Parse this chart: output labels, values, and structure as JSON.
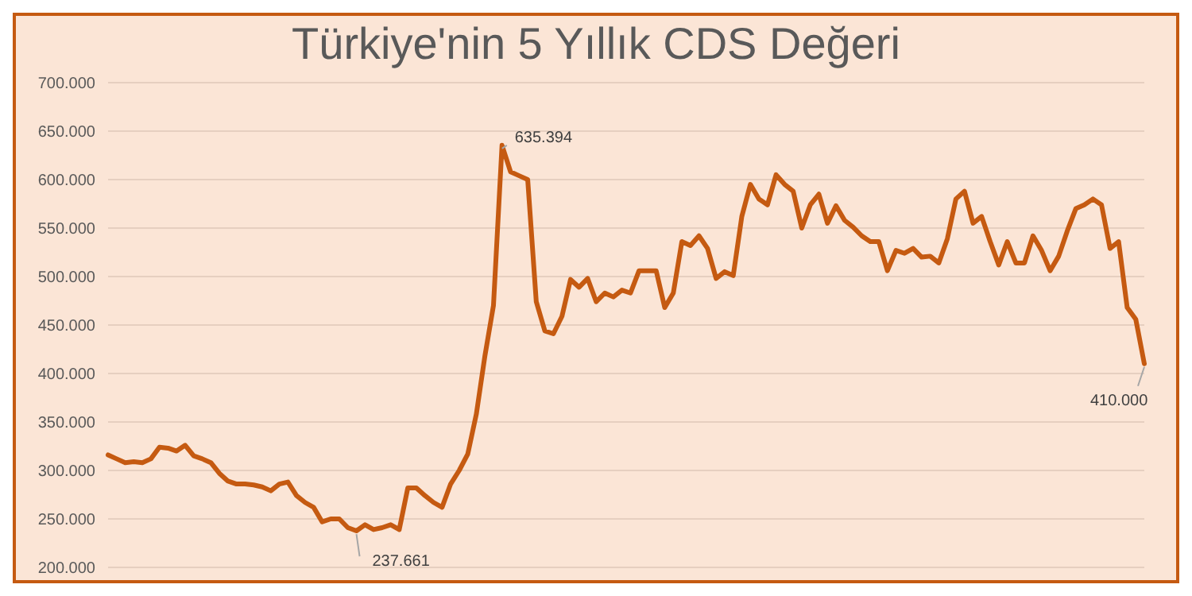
{
  "chart_data": {
    "type": "line",
    "title": "Türkiye'nin 5 Yıllık CDS Değeri",
    "categories": [
      null,
      null,
      null,
      null,
      null,
      null,
      null,
      null,
      null,
      null,
      null,
      null,
      null,
      null,
      null,
      null,
      null,
      null,
      null,
      null,
      null,
      null,
      null,
      null,
      null,
      null,
      null,
      null,
      null,
      null,
      null,
      null,
      null,
      null,
      null,
      null,
      null,
      null,
      null,
      null,
      null,
      null,
      null,
      null,
      null,
      null,
      null,
      null,
      null,
      null,
      null,
      null,
      null,
      null,
      null,
      null,
      null,
      null,
      null,
      null,
      null,
      null,
      null,
      null,
      null,
      null,
      null,
      null,
      null,
      null,
      null,
      null,
      null,
      null,
      null,
      null,
      null,
      null,
      null,
      null,
      null,
      null,
      null,
      null,
      null,
      null,
      null,
      null,
      null,
      null,
      null,
      null,
      null,
      null,
      null,
      null,
      null,
      null,
      null,
      null,
      null,
      null,
      null,
      null,
      null,
      null,
      null,
      null,
      null,
      null,
      null,
      null,
      null,
      null,
      null,
      null,
      null,
      null,
      null,
      null,
      null,
      null
    ],
    "series": [
      {
        "color": "#c55a11",
        "values": [
          316,
          312,
          308,
          309,
          308,
          312,
          324,
          323,
          320,
          326,
          315,
          312,
          308,
          297,
          289,
          286,
          286,
          285,
          283,
          279,
          286,
          288,
          274,
          267,
          262,
          247,
          250,
          250,
          241,
          237.661,
          244,
          239,
          241,
          244,
          239,
          282,
          282,
          274,
          267,
          262,
          286,
          300,
          317,
          358,
          418,
          470,
          635.394,
          608,
          604,
          600,
          474,
          444,
          441,
          459,
          497,
          489,
          498,
          474,
          483,
          479,
          486,
          483,
          506,
          506,
          506,
          468,
          483,
          536,
          532,
          542,
          529,
          498,
          505,
          501,
          562,
          595,
          580,
          574,
          605,
          595,
          588,
          550,
          574,
          585,
          555,
          573,
          558,
          551,
          542,
          536,
          536,
          506,
          527,
          524,
          529,
          520,
          521,
          514,
          539,
          580,
          588,
          555,
          562,
          536,
          512,
          536,
          514,
          514,
          542,
          527,
          506,
          521,
          547,
          570,
          574,
          580,
          574,
          529,
          536,
          468,
          456,
          410
        ],
        "value_labels": [
          null,
          null,
          null,
          null,
          null,
          null,
          null,
          null,
          null,
          null,
          null,
          null,
          null,
          null,
          null,
          null,
          null,
          null,
          null,
          null,
          null,
          null,
          null,
          null,
          null,
          null,
          null,
          null,
          null,
          "237.661",
          null,
          null,
          null,
          null,
          null,
          null,
          null,
          null,
          null,
          null,
          null,
          null,
          null,
          null,
          null,
          null,
          "635.394",
          null,
          null,
          null,
          null,
          null,
          null,
          null,
          null,
          null,
          null,
          null,
          null,
          null,
          null,
          null,
          null,
          null,
          null,
          null,
          null,
          null,
          null,
          null,
          null,
          null,
          null,
          null,
          null,
          null,
          null,
          null,
          null,
          null,
          null,
          null,
          null,
          null,
          null,
          null,
          null,
          null,
          null,
          null,
          null,
          null,
          null,
          null,
          null,
          null,
          null,
          null,
          null,
          null,
          null,
          null,
          null,
          null,
          null,
          null,
          null,
          null,
          null,
          null,
          null,
          null,
          null,
          null,
          null,
          null,
          null,
          null,
          null,
          null,
          null,
          "410.000"
        ]
      }
    ],
    "ylim": [
      200,
      700
    ],
    "yticks": [
      {
        "value": 200,
        "label": "200.000"
      },
      {
        "value": 250,
        "label": "250.000"
      },
      {
        "value": 300,
        "label": "300.000"
      },
      {
        "value": 350,
        "label": "350.000"
      },
      {
        "value": 400,
        "label": "400.000"
      },
      {
        "value": 450,
        "label": "450.000"
      },
      {
        "value": 500,
        "label": "500.000"
      },
      {
        "value": 550,
        "label": "550.000"
      },
      {
        "value": 600,
        "label": "600.000"
      },
      {
        "value": 650,
        "label": "650.000"
      },
      {
        "value": 700,
        "label": "700.000"
      }
    ],
    "grid": "y",
    "tick_labels": "y",
    "marker": "none",
    "line_style": "solid",
    "legend": false
  }
}
